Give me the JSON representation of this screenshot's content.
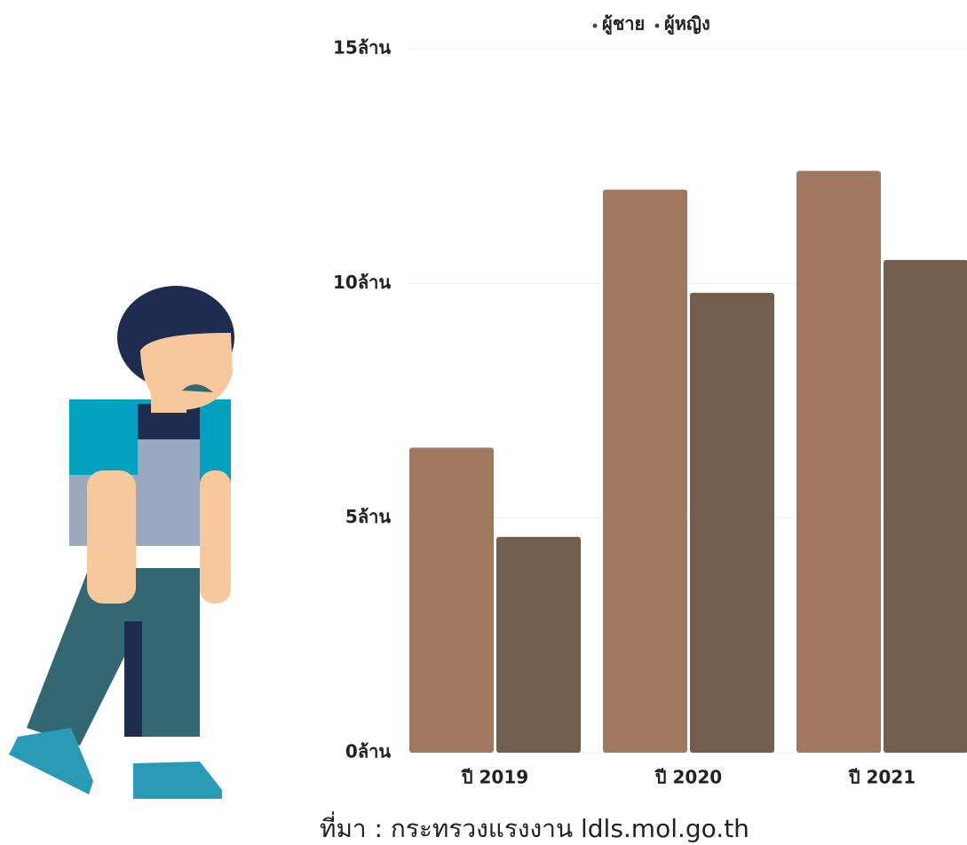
{
  "chart_data": {
    "type": "bar",
    "categories": [
      "ปี 2019",
      "ปี 2020",
      "ปี 2021"
    ],
    "series": [
      {
        "name": "ผู้ชาย",
        "color": "#a0785e",
        "values": [
          6.5,
          12.0,
          12.4
        ]
      },
      {
        "name": "ผู้หญิง",
        "color": "#735e4c",
        "values": [
          4.6,
          9.8,
          10.5
        ]
      }
    ],
    "ylim": [
      0,
      15
    ],
    "yticks": [
      {
        "value": 0,
        "label": "0ล้าน"
      },
      {
        "value": 5,
        "label": "5ล้าน"
      },
      {
        "value": 10,
        "label": "10ล้าน"
      },
      {
        "value": 15,
        "label": "15ล้าน"
      }
    ],
    "grid": true,
    "legend": "top",
    "source": "ที่มา : กระทรวงแรงงาน ldls.mol.go.th"
  }
}
